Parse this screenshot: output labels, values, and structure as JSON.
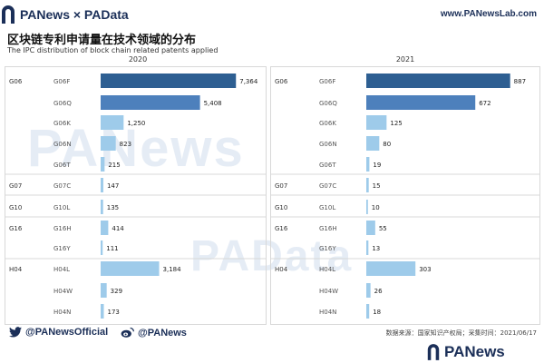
{
  "header": {
    "brand": "PANews × PAData",
    "url": "www.PANewsLab.com"
  },
  "title": "区块链专利申请量在技术领域的分布",
  "subtitle": "The IPC distribution of block chain related patents applied",
  "watermarks": [
    "PANews",
    "PAData"
  ],
  "colors": {
    "dark": "#2e5f92",
    "medium": "#4d80bc",
    "light": "#9ecbea",
    "grid": "#d8d8d8"
  },
  "chart_data": [
    {
      "type": "bar",
      "orientation": "horizontal",
      "title": "2020",
      "groups": [
        "G06",
        "",
        "",
        "",
        "",
        "G07",
        "G10",
        "G16",
        "",
        "H04",
        "",
        ""
      ],
      "categories": [
        "G06F",
        "G06Q",
        "G06K",
        "G06N",
        "G06T",
        "G07C",
        "G10L",
        "G16H",
        "G16Y",
        "H04L",
        "H04W",
        "H04N"
      ],
      "values": [
        7364,
        5408,
        1250,
        823,
        215,
        147,
        135,
        414,
        111,
        3184,
        329,
        173
      ],
      "value_labels": [
        "7,364",
        "5,408",
        "1,250",
        "823",
        "215",
        "147",
        "135",
        "414",
        "111",
        "3,184",
        "329",
        "173"
      ],
      "xlim": [
        0,
        7500
      ]
    },
    {
      "type": "bar",
      "orientation": "horizontal",
      "title": "2021",
      "groups": [
        "G06",
        "",
        "",
        "",
        "",
        "G07",
        "G10",
        "G16",
        "",
        "H04",
        "",
        ""
      ],
      "categories": [
        "G06F",
        "G06Q",
        "G06K",
        "G06N",
        "G06T",
        "G07C",
        "G10L",
        "G16H",
        "G16Y",
        "H04L",
        "H04W",
        "H04N"
      ],
      "values": [
        887,
        672,
        125,
        80,
        19,
        15,
        10,
        55,
        13,
        303,
        26,
        18
      ],
      "value_labels": [
        "887",
        "672",
        "125",
        "80",
        "19",
        "15",
        "10",
        "55",
        "13",
        "303",
        "26",
        "18"
      ],
      "xlim": [
        0,
        900
      ]
    }
  ],
  "footer": {
    "twitter": "@PANewsOfficial",
    "weibo": "@PANews",
    "source": "数据来源：国家知识产权局；采集时间：2021/06/17",
    "logo": "PANews"
  }
}
